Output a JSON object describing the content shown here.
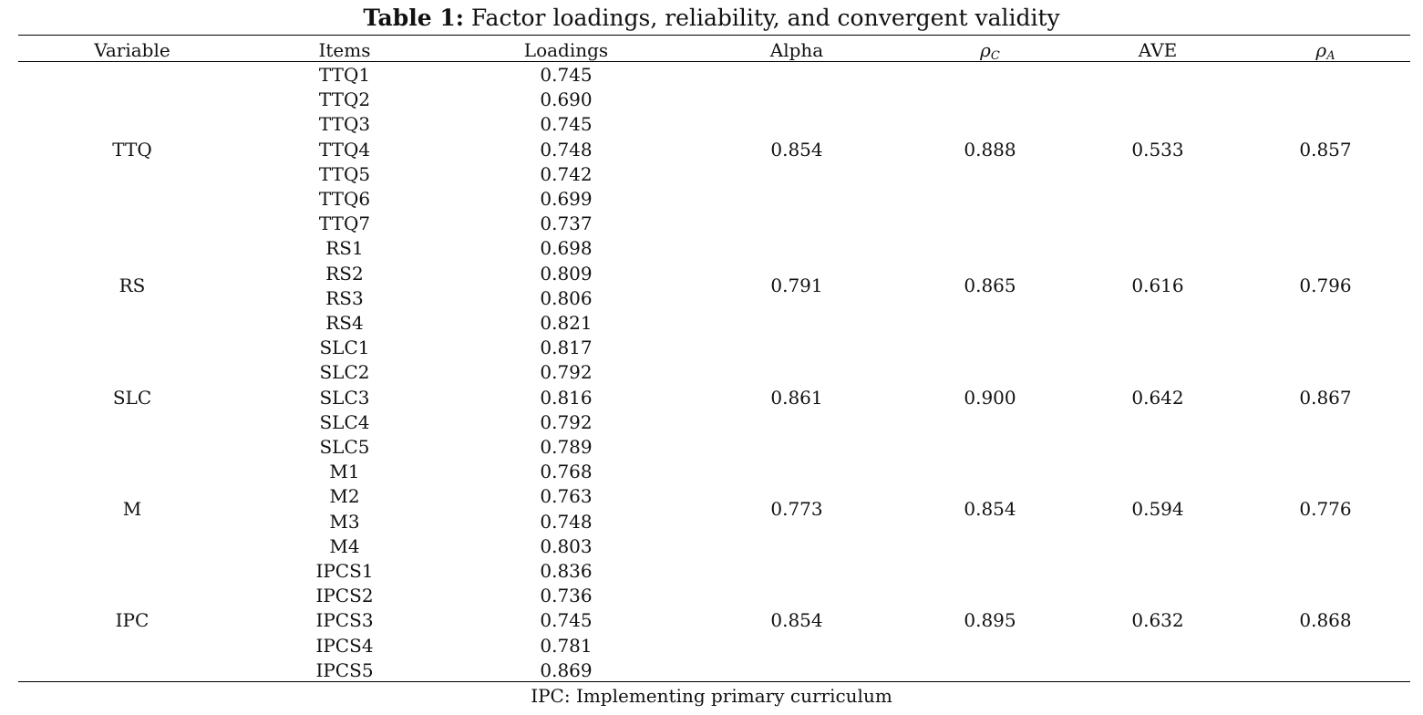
{
  "caption": {
    "label": "Table 1:",
    "text": " Factor loadings, reliability, and convergent validity"
  },
  "table": {
    "columns": [
      "Variable",
      "Items",
      "Loadings",
      "Alpha",
      "ρC",
      "AVE",
      "ρA"
    ],
    "rho_c": {
      "symbol": "ρ",
      "sub": "C"
    },
    "rho_a": {
      "symbol": "ρ",
      "sub": "A"
    },
    "groups": [
      {
        "variable": "TTQ",
        "alpha": "0.854",
        "rho_c": "0.888",
        "ave": "0.533",
        "rho_a": "0.857",
        "items": [
          [
            "TTQ1",
            "0.745"
          ],
          [
            "TTQ2",
            "0.690"
          ],
          [
            "TTQ3",
            "0.745"
          ],
          [
            "TTQ4",
            "0.748"
          ],
          [
            "TTQ5",
            "0.742"
          ],
          [
            "TTQ6",
            "0.699"
          ],
          [
            "TTQ7",
            "0.737"
          ]
        ]
      },
      {
        "variable": "RS",
        "alpha": "0.791",
        "rho_c": "0.865",
        "ave": "0.616",
        "rho_a": "0.796",
        "items": [
          [
            "RS1",
            "0.698"
          ],
          [
            "RS2",
            "0.809"
          ],
          [
            "RS3",
            "0.806"
          ],
          [
            "RS4",
            "0.821"
          ]
        ]
      },
      {
        "variable": "SLC",
        "alpha": "0.861",
        "rho_c": "0.900",
        "ave": "0.642",
        "rho_a": "0.867",
        "items": [
          [
            "SLC1",
            "0.817"
          ],
          [
            "SLC2",
            "0.792"
          ],
          [
            "SLC3",
            "0.816"
          ],
          [
            "SLC4",
            "0.792"
          ],
          [
            "SLC5",
            "0.789"
          ]
        ]
      },
      {
        "variable": "M",
        "alpha": "0.773",
        "rho_c": "0.854",
        "ave": "0.594",
        "rho_a": "0.776",
        "items": [
          [
            "M1",
            "0.768"
          ],
          [
            "M2",
            "0.763"
          ],
          [
            "M3",
            "0.748"
          ],
          [
            "M4",
            "0.803"
          ]
        ]
      },
      {
        "variable": "IPC",
        "alpha": "0.854",
        "rho_c": "0.895",
        "ave": "0.632",
        "rho_a": "0.868",
        "items": [
          [
            "IPCS1",
            "0.836"
          ],
          [
            "IPCS2",
            "0.736"
          ],
          [
            "IPCS3",
            "0.745"
          ],
          [
            "IPCS4",
            "0.781"
          ],
          [
            "IPCS5",
            "0.869"
          ]
        ]
      }
    ]
  },
  "note": "IPC: Implementing primary curriculum"
}
